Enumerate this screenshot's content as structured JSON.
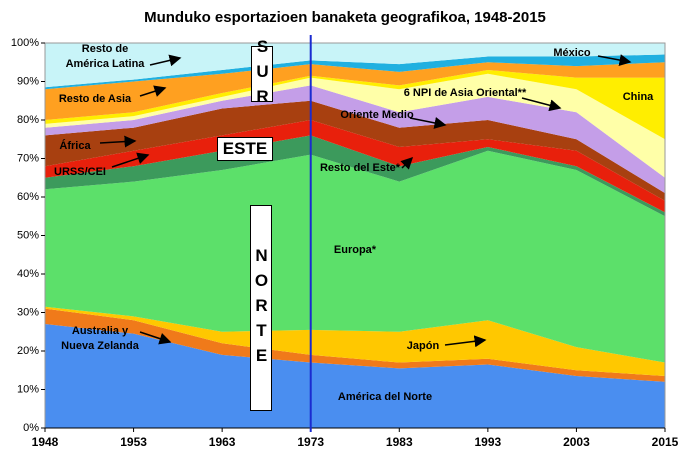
{
  "chart_data": {
    "type": "stacked_area",
    "title": "Munduko esportazioen banaketa geografikoa, 1948-2015",
    "categories": [
      "1948",
      "1953",
      "1963",
      "1973",
      "1983",
      "1993",
      "2003",
      "2015"
    ],
    "ylim": [
      0,
      100
    ],
    "yticks": [
      {
        "value": 0,
        "label": "0%"
      },
      {
        "value": 10,
        "label": "10%"
      },
      {
        "value": 20,
        "label": "20%"
      },
      {
        "value": 30,
        "label": "30%"
      },
      {
        "value": 40,
        "label": "40%"
      },
      {
        "value": 50,
        "label": "50%"
      },
      {
        "value": 60,
        "label": "60%"
      },
      {
        "value": 70,
        "label": "70%"
      },
      {
        "value": 80,
        "label": "80%"
      },
      {
        "value": 90,
        "label": "90%"
      },
      {
        "value": 100,
        "label": "100%"
      }
    ],
    "series": [
      {
        "name": "América del Norte",
        "color": "#4a8ef0",
        "values": [
          27,
          24.5,
          19,
          17,
          15.5,
          16.5,
          13.5,
          12
        ]
      },
      {
        "name": "Australia y Nueva Zelanda",
        "color": "#f07a1a",
        "values": [
          4,
          3.5,
          3,
          2,
          1.5,
          1.5,
          1.5,
          1.5
        ]
      },
      {
        "name": "Japón",
        "color": "#ffc800",
        "values": [
          0.5,
          1,
          3,
          6.5,
          8,
          10,
          6,
          3.5
        ]
      },
      {
        "name": "Europa*",
        "color": "#5ce06a",
        "values": [
          30.5,
          35,
          42,
          45.5,
          39,
          44,
          46,
          38
        ]
      },
      {
        "name": "Resto del Este*",
        "color": "#3c9a5c",
        "values": [
          3,
          4,
          5,
          5,
          4,
          1,
          1,
          1
        ]
      },
      {
        "name": "URSS/CEI",
        "color": "#e8200c",
        "values": [
          3,
          4,
          4,
          4,
          5,
          2,
          4,
          3
        ]
      },
      {
        "name": "África",
        "color": "#a84010",
        "values": [
          8,
          6,
          7,
          5,
          5,
          5,
          3,
          2
        ]
      },
      {
        "name": "Oriente  Medio",
        "color": "#c49ee8",
        "values": [
          2,
          2,
          2,
          4,
          4,
          6,
          7,
          4
        ]
      },
      {
        "name": "6 NPI de Asia Oriental**",
        "color": "#ffffa8",
        "values": [
          1,
          1,
          1,
          2,
          6,
          6,
          6,
          10
        ]
      },
      {
        "name": "China",
        "color": "#ffee00",
        "values": [
          1,
          1,
          1,
          0.5,
          1,
          1,
          3,
          16
        ]
      },
      {
        "name": "Resto de Asia",
        "color": "#ffa020",
        "values": [
          8,
          8,
          5,
          3,
          3.5,
          2,
          3,
          4
        ]
      },
      {
        "name": "México",
        "color": "#20b0e0",
        "values": [
          0.5,
          0.5,
          1,
          1,
          2,
          1.5,
          2.5,
          2
        ]
      },
      {
        "name": "Resto de América Latina",
        "color": "#c8f4f8",
        "values": [
          11.5,
          9.5,
          7,
          4.5,
          5.5,
          3.5,
          3.5,
          3
        ]
      }
    ],
    "labels": [
      {
        "lines": [
          "Resto de",
          "América Latina"
        ]
      },
      {
        "lines": [
          "Resto de Asia"
        ]
      },
      {
        "lines": [
          "África"
        ]
      },
      {
        "lines": [
          "URSS/CEI"
        ]
      },
      {
        "lines": [
          "Oriente  Medio"
        ]
      },
      {
        "lines": [
          "6 NPI de Asia Oriental**"
        ]
      },
      {
        "lines": [
          "China"
        ]
      },
      {
        "lines": [
          "México"
        ]
      },
      {
        "lines": [
          "Resto del Este*"
        ]
      },
      {
        "lines": [
          "Europa*"
        ]
      },
      {
        "lines": [
          "Japón"
        ]
      },
      {
        "lines": [
          "Australia y",
          "Nueva Zelanda"
        ]
      },
      {
        "lines": [
          "América del Norte"
        ]
      }
    ],
    "regions": [
      "SUR",
      "ESTE",
      "NORTE"
    ]
  }
}
